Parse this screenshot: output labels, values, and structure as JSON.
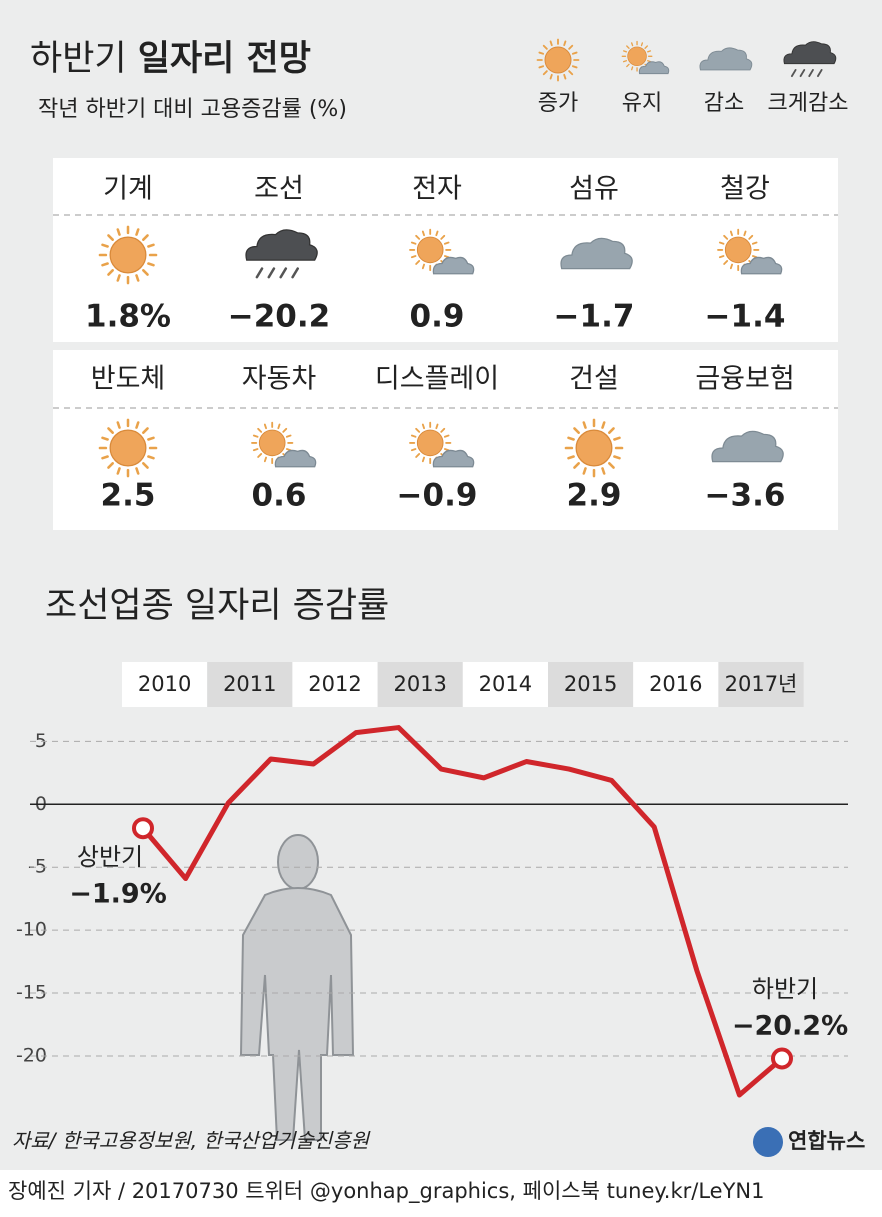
{
  "header": {
    "title_light": "하반기",
    "title_bold": "일자리 전망",
    "subtitle": "작년 하반기 대비 고용증감률 (%)"
  },
  "legend": [
    {
      "label": "증가",
      "icon": "sun"
    },
    {
      "label": "유지",
      "icon": "partly"
    },
    {
      "label": "감소",
      "icon": "cloud"
    },
    {
      "label": "크게감소",
      "icon": "rain"
    }
  ],
  "industries": [
    {
      "name": "기계",
      "value": "1.8%",
      "icon": "sun"
    },
    {
      "name": "조선",
      "value": "−20.2",
      "icon": "rain"
    },
    {
      "name": "전자",
      "value": "0.9",
      "icon": "partly"
    },
    {
      "name": "섬유",
      "value": "−1.7",
      "icon": "cloud"
    },
    {
      "name": "철강",
      "value": "−1.4",
      "icon": "partly"
    },
    {
      "name": "반도체",
      "value": "2.5",
      "icon": "sun"
    },
    {
      "name": "자동차",
      "value": "0.6",
      "icon": "partly"
    },
    {
      "name": "디스플레이",
      "value": "−0.9",
      "icon": "partly"
    },
    {
      "name": "건설",
      "value": "2.9",
      "icon": "sun"
    },
    {
      "name": "금융보험",
      "value": "−3.6",
      "icon": "cloud"
    }
  ],
  "chart_data": {
    "type": "line",
    "title": "조선업종 일자리 증감률",
    "year_labels": [
      "2010",
      "2011",
      "2012",
      "2013",
      "2014",
      "2015",
      "2016",
      "2017년"
    ],
    "values": [
      -1.9,
      -5.9,
      0.1,
      3.6,
      3.2,
      5.7,
      6.1,
      2.8,
      2.1,
      3.4,
      2.8,
      1.9,
      -1.8,
      -13.2,
      -23.1,
      -20.2
    ],
    "value_labels": [
      "−1.9%",
      null,
      null,
      null,
      null,
      null,
      null,
      null,
      null,
      null,
      null,
      null,
      null,
      null,
      null,
      "−20.2%"
    ],
    "annotations": [
      "상반기",
      "하반기"
    ],
    "color": "#d0262b",
    "ylim": [
      -23.5,
      6.7
    ],
    "yticks": [
      5,
      0,
      -5,
      -10,
      -15,
      -20
    ],
    "grid": true
  },
  "source": "자료/ 한국고용정보원, 한국산업기술진흥원",
  "logo": "연합뉴스",
  "byline": "장예진 기자 / 20170730 트위터 @yonhap_graphics, 페이스북 tuney.kr/LeYN1"
}
